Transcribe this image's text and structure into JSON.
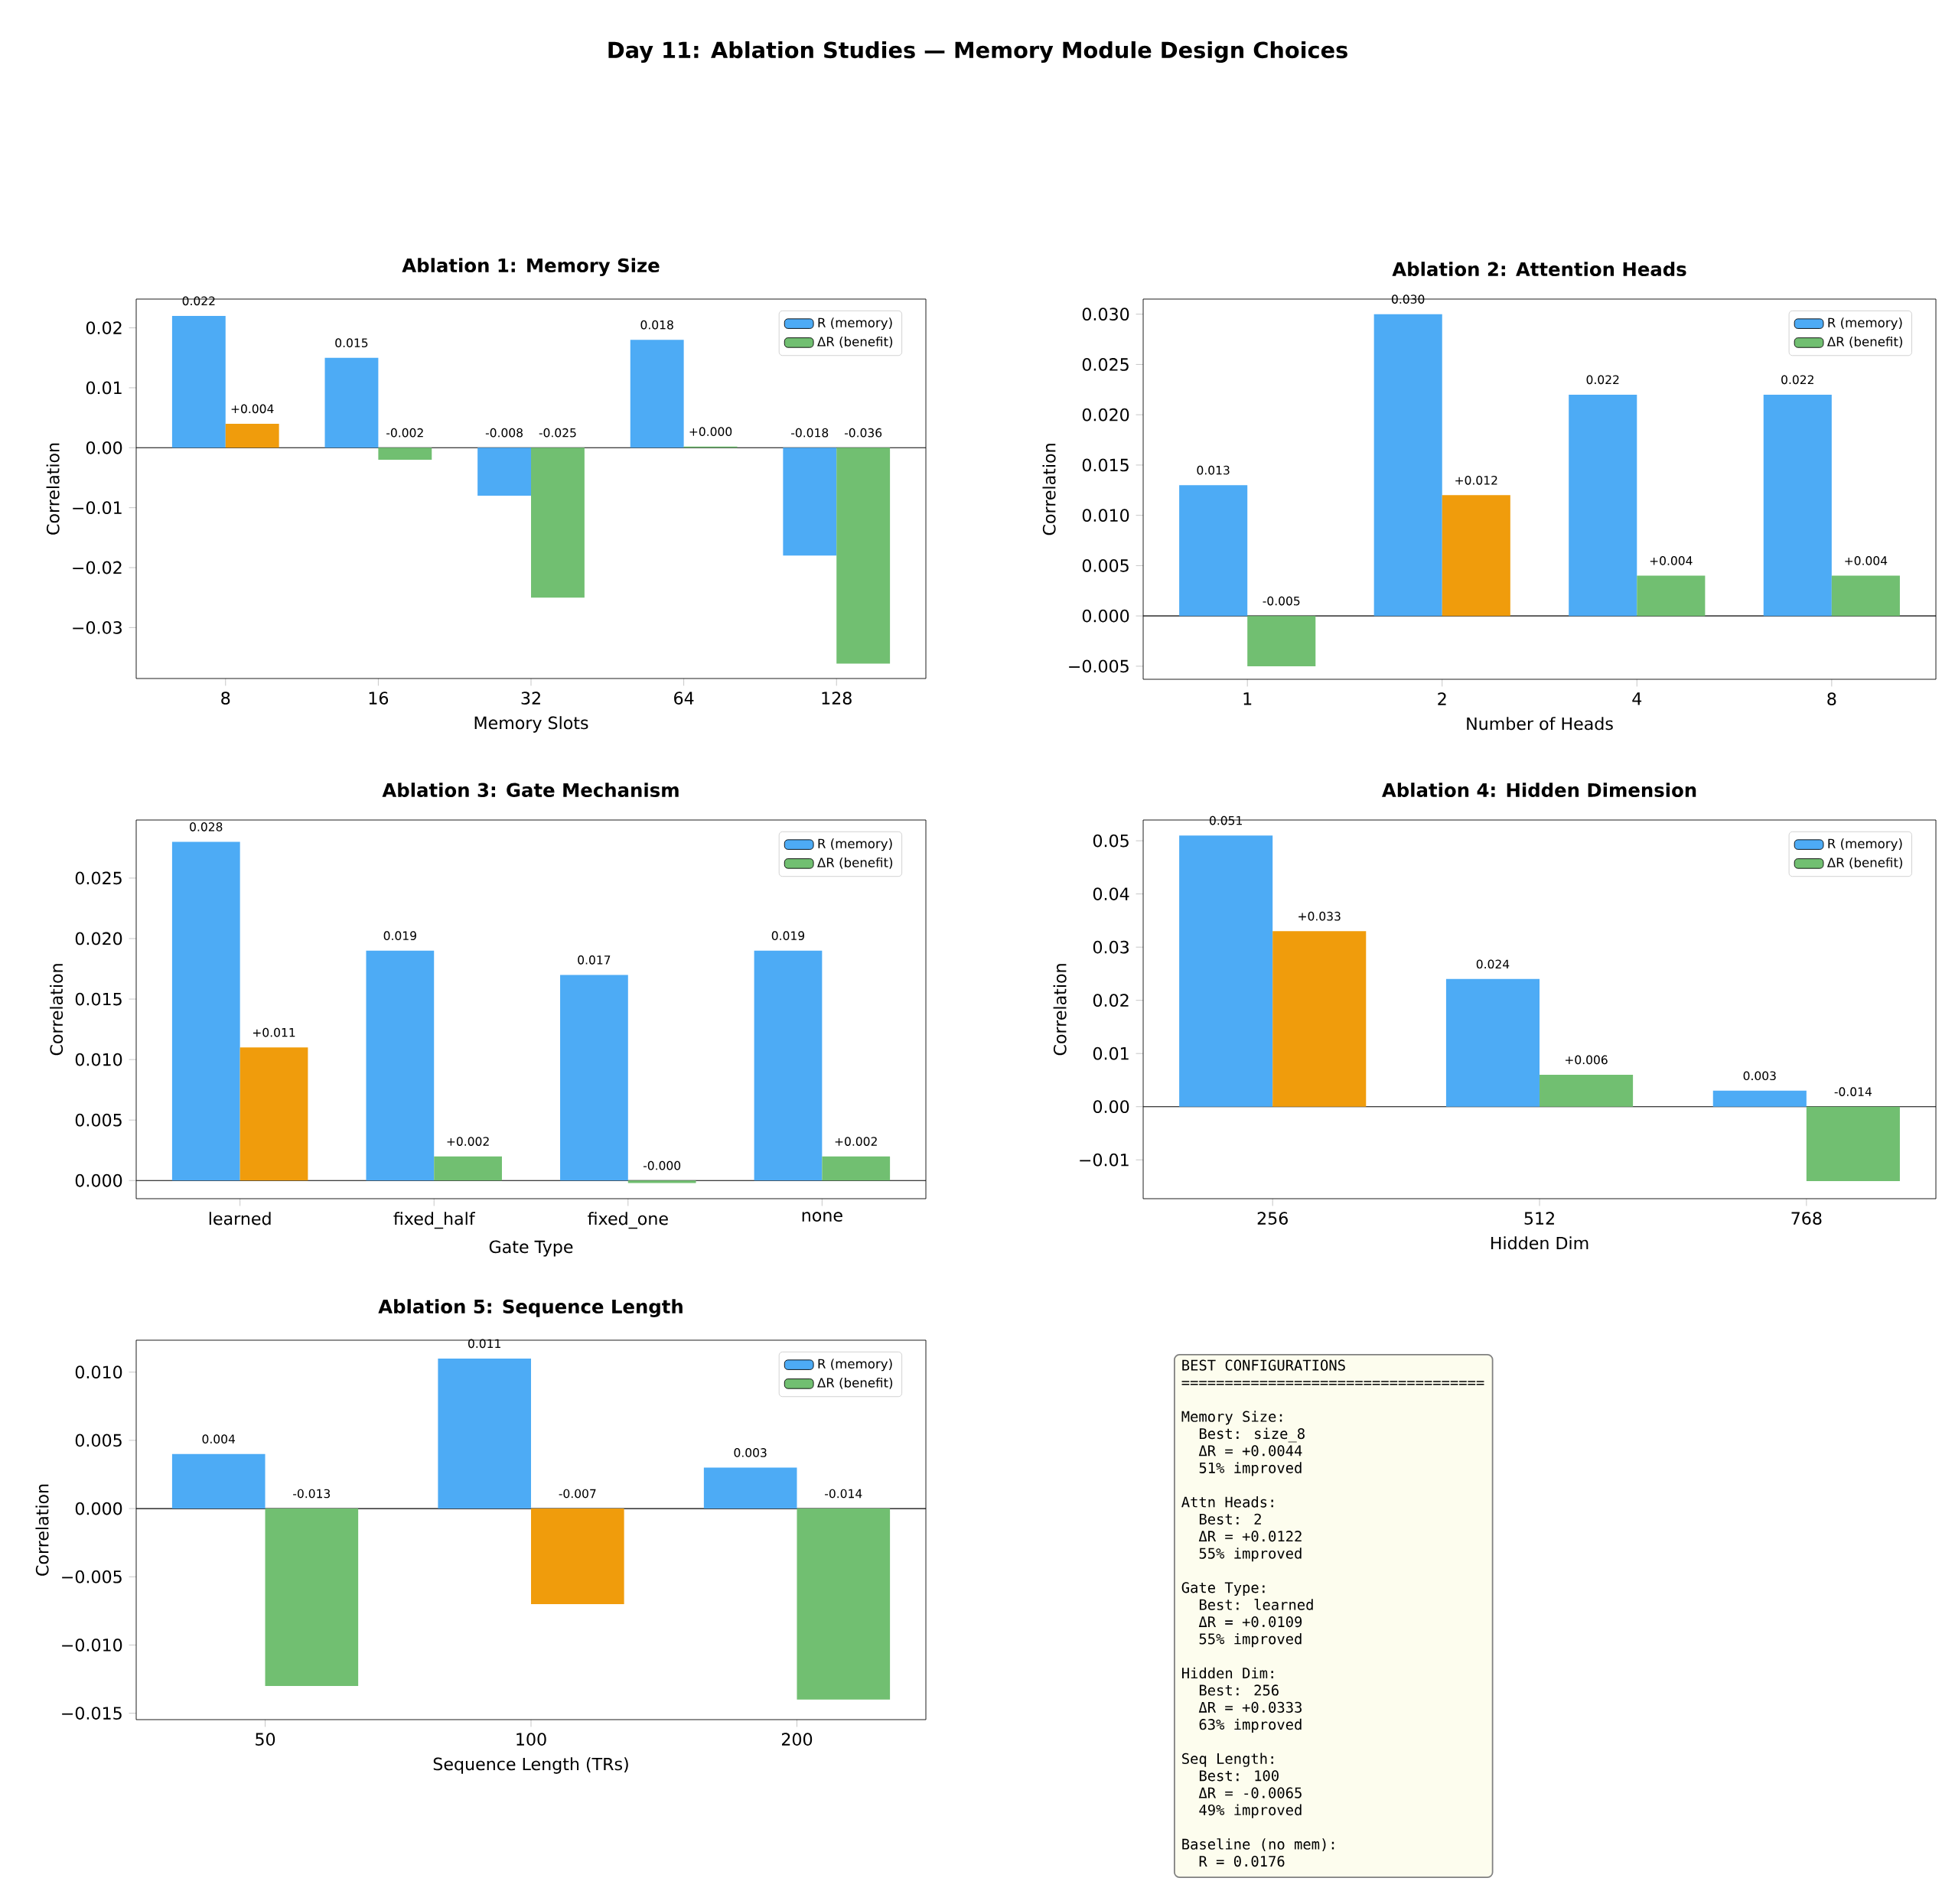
{
  "chart_data": [
    {
      "type": "bar",
      "title": "Ablation 1: Memory Size",
      "xlabel": "Memory Slots",
      "ylabel": "Correlation",
      "categories": [
        "8",
        "16",
        "32",
        "64",
        "128"
      ],
      "series": [
        {
          "name": "R (memory)",
          "color": "#4dabf5",
          "values": [
            0.022,
            0.015,
            -0.008,
            0.018,
            -0.018
          ],
          "value_labels": [
            "0.022",
            "0.015",
            "-0.008",
            "0.018",
            "-0.018"
          ]
        },
        {
          "name": "ΔR (benefit)",
          "color": "#71bf71",
          "colors": [
            "#f09c0c",
            "#71bf71",
            "#71bf71",
            "#71bf71",
            "#71bf71"
          ],
          "values": [
            0.004,
            -0.002,
            -0.025,
            0.0002,
            -0.036
          ],
          "value_labels": [
            "+0.004",
            "-0.002",
            "-0.025",
            "+0.000",
            "-0.036"
          ]
        }
      ],
      "ylim": [
        -0.0385,
        0.0248
      ],
      "yticks": [
        {
          "value": -0.03,
          "label": "−0.03"
        },
        {
          "value": -0.02,
          "label": "−0.02"
        },
        {
          "value": -0.01,
          "label": "−0.01"
        },
        {
          "value": 0,
          "label": "0.00"
        },
        {
          "value": 0.01,
          "label": "0.01"
        },
        {
          "value": 0.02,
          "label": "0.02"
        }
      ],
      "legend": "top right",
      "ref_lines": [
        {
          "axis": "y",
          "value": 0,
          "color": "#000000"
        }
      ],
      "annotations": [
        "Day 11: Ablation Studies — Memory Module Design Choices"
      ]
    },
    {
      "type": "bar",
      "title": "Ablation 2: Attention Heads",
      "xlabel": "Number of Heads",
      "ylabel": "Correlation",
      "categories": [
        "1",
        "2",
        "4",
        "8"
      ],
      "series": [
        {
          "name": "R (memory)",
          "color": "#4dabf5",
          "values": [
            0.013,
            0.03,
            0.022,
            0.022
          ],
          "value_labels": [
            "0.013",
            "0.030",
            "0.022",
            "0.022"
          ]
        },
        {
          "name": "ΔR (benefit)",
          "color": "#71bf71",
          "colors": [
            "#71bf71",
            "#f09c0c",
            "#71bf71",
            "#71bf71"
          ],
          "values": [
            -0.005,
            0.012,
            0.004,
            0.004
          ],
          "value_labels": [
            "-0.005",
            "+0.012",
            "+0.004",
            "+0.004"
          ]
        }
      ],
      "ylim": [
        -0.0063,
        0.0315
      ],
      "yticks": [
        {
          "value": -0.005,
          "label": "−0.005"
        },
        {
          "value": 0,
          "label": "0.000"
        },
        {
          "value": 0.005,
          "label": "0.005"
        },
        {
          "value": 0.01,
          "label": "0.010"
        },
        {
          "value": 0.015,
          "label": "0.015"
        },
        {
          "value": 0.02,
          "label": "0.020"
        },
        {
          "value": 0.025,
          "label": "0.025"
        },
        {
          "value": 0.03,
          "label": "0.030"
        }
      ],
      "legend": "top right",
      "ref_lines": [
        {
          "axis": "y",
          "value": 0,
          "color": "#000000"
        }
      ]
    },
    {
      "type": "bar",
      "title": "Ablation 3: Gate Mechanism",
      "xlabel": "Gate Type",
      "ylabel": "Correlation",
      "categories": [
        "learned",
        "fixed_half",
        "fixed_one",
        "none"
      ],
      "series": [
        {
          "name": "R (memory)",
          "color": "#4dabf5",
          "values": [
            0.028,
            0.019,
            0.017,
            0.019
          ],
          "value_labels": [
            "0.028",
            "0.019",
            "0.017",
            "0.019"
          ]
        },
        {
          "name": "ΔR (benefit)",
          "color": "#71bf71",
          "colors": [
            "#f09c0c",
            "#71bf71",
            "#71bf71",
            "#71bf71"
          ],
          "values": [
            0.011,
            0.002,
            -0.0002,
            0.002
          ],
          "value_labels": [
            "+0.011",
            "+0.002",
            "-0.000",
            "+0.002"
          ]
        }
      ],
      "ylim": [
        -0.0015,
        0.0298
      ],
      "yticks": [
        {
          "value": 0,
          "label": "0.000"
        },
        {
          "value": 0.005,
          "label": "0.005"
        },
        {
          "value": 0.01,
          "label": "0.010"
        },
        {
          "value": 0.015,
          "label": "0.015"
        },
        {
          "value": 0.02,
          "label": "0.020"
        },
        {
          "value": 0.025,
          "label": "0.025"
        }
      ],
      "legend": "top right",
      "ref_lines": [
        {
          "axis": "y",
          "value": 0,
          "color": "#000000"
        }
      ]
    },
    {
      "type": "bar",
      "title": "Ablation 4: Hidden Dimension",
      "xlabel": "Hidden Dim",
      "ylabel": "Correlation",
      "categories": [
        "256",
        "512",
        "768"
      ],
      "series": [
        {
          "name": "R (memory)",
          "color": "#4dabf5",
          "values": [
            0.051,
            0.024,
            0.003
          ],
          "value_labels": [
            "0.051",
            "0.024",
            "0.003"
          ]
        },
        {
          "name": "ΔR (benefit)",
          "color": "#71bf71",
          "colors": [
            "#f09c0c",
            "#71bf71",
            "#71bf71"
          ],
          "values": [
            0.033,
            0.006,
            -0.014
          ],
          "value_labels": [
            "+0.033",
            "+0.006",
            "-0.014"
          ]
        }
      ],
      "ylim": [
        -0.0173,
        0.0539
      ],
      "yticks": [
        {
          "value": -0.01,
          "label": "−0.01"
        },
        {
          "value": 0,
          "label": "0.00"
        },
        {
          "value": 0.01,
          "label": "0.01"
        },
        {
          "value": 0.02,
          "label": "0.02"
        },
        {
          "value": 0.03,
          "label": "0.03"
        },
        {
          "value": 0.04,
          "label": "0.04"
        },
        {
          "value": 0.05,
          "label": "0.05"
        }
      ],
      "legend": "top right",
      "ref_lines": [
        {
          "axis": "y",
          "value": 0,
          "color": "#000000"
        }
      ]
    },
    {
      "type": "bar",
      "title": "Ablation 5: Sequence Length",
      "xlabel": "Sequence Length (TRs)",
      "ylabel": "Correlation",
      "categories": [
        "50",
        "100",
        "200"
      ],
      "series": [
        {
          "name": "R (memory)",
          "color": "#4dabf5",
          "values": [
            0.004,
            0.011,
            0.003
          ],
          "value_labels": [
            "0.004",
            "0.011",
            "0.003"
          ]
        },
        {
          "name": "ΔR (benefit)",
          "color": "#71bf71",
          "colors": [
            "#71bf71",
            "#f09c0c",
            "#71bf71"
          ],
          "values": [
            -0.013,
            -0.007,
            -0.014
          ],
          "value_labels": [
            "-0.013",
            "-0.007",
            "-0.014"
          ]
        }
      ],
      "ylim": [
        -0.01547,
        0.01234
      ],
      "yticks": [
        {
          "value": -0.015,
          "label": "−0.015"
        },
        {
          "value": -0.01,
          "label": "−0.010"
        },
        {
          "value": -0.005,
          "label": "−0.005"
        },
        {
          "value": 0,
          "label": "0.000"
        },
        {
          "value": 0.005,
          "label": "0.005"
        },
        {
          "value": 0.01,
          "label": "0.010"
        }
      ],
      "legend": "top right",
      "ref_lines": [
        {
          "axis": "y",
          "value": 0,
          "color": "#000000"
        }
      ]
    },
    {
      "type": "other",
      "title": "BEST CONFIGURATIONS",
      "annotations": [
        "===================================",
        "Memory Size:",
        "Best: size_8",
        "ΔR = +0.0044",
        "51% improved",
        "Attn Heads:",
        "Best: 2",
        "ΔR = +0.0122",
        "55% improved",
        "Gate Type:",
        "Best: learned",
        "ΔR = +0.0109",
        "55% improved",
        "Hidden Dim:",
        "Best: 256",
        "ΔR = +0.0333",
        "63% improved",
        "Seq Length:",
        "Best: 100",
        "ΔR = -0.0065",
        "49% improved",
        "Baseline (no mem):",
        "R = 0.0176"
      ]
    }
  ]
}
